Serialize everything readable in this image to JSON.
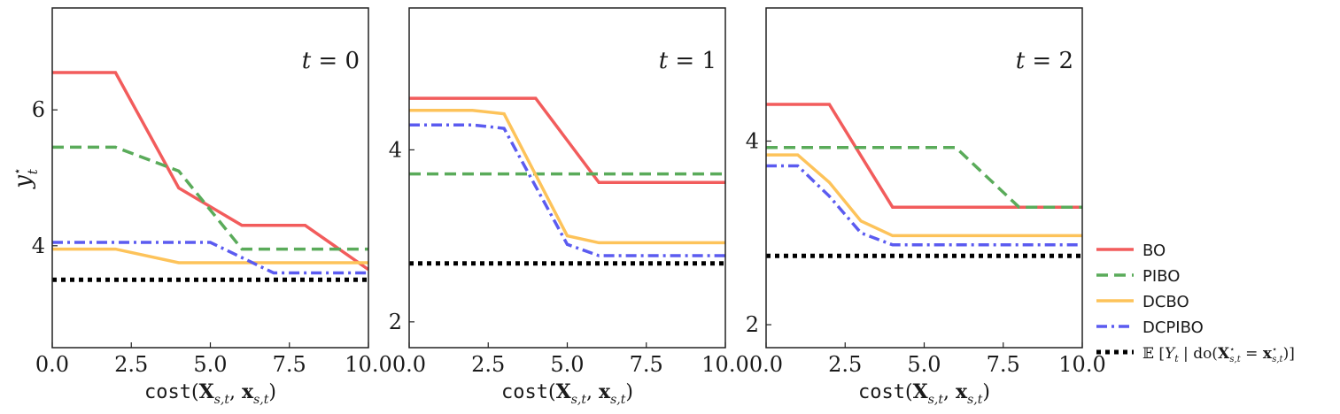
{
  "chart_data": [
    {
      "type": "line",
      "panel_label": "t = 0",
      "xlabel": "cost(X_{s,t}, x_{s,t})",
      "ylabel": "y*_t",
      "xlim": [
        0,
        10
      ],
      "ylim": [
        2.5,
        7.5
      ],
      "xticks": [
        0,
        2.5,
        5,
        7.5,
        10
      ],
      "xtick_labels": [
        "0.0",
        "2.5",
        "5.0",
        "7.5",
        "10.0"
      ],
      "yticks": [
        4,
        6
      ],
      "ytick_labels": [
        "4",
        "6"
      ],
      "series": [
        {
          "name": "BO",
          "color": "#f25c5c",
          "style": "solid",
          "x": [
            0,
            2,
            4,
            6,
            8,
            10
          ],
          "y": [
            6.55,
            6.55,
            4.85,
            4.3,
            4.3,
            3.65
          ]
        },
        {
          "name": "PIBO",
          "color": "#5aab5a",
          "style": "dashed",
          "x": [
            0,
            2,
            4,
            6,
            8,
            10
          ],
          "y": [
            5.45,
            5.45,
            5.1,
            3.95,
            3.95,
            3.95
          ]
        },
        {
          "name": "DCBO",
          "color": "#fdc35a",
          "style": "solid",
          "x": [
            0,
            2,
            4,
            6,
            8,
            10
          ],
          "y": [
            3.95,
            3.95,
            3.75,
            3.75,
            3.75,
            3.75
          ]
        },
        {
          "name": "DCPIBO",
          "color": "#5b5bf0",
          "style": "dashdot",
          "x": [
            0,
            2,
            4,
            5,
            7,
            8,
            10
          ],
          "y": [
            4.05,
            4.05,
            4.05,
            4.05,
            3.6,
            3.6,
            3.6
          ]
        },
        {
          "name": "E[Y_t | do(X*_{s,t} = x*_{s,t})]",
          "color": "#000000",
          "style": "dotted",
          "x": [
            0,
            10
          ],
          "y": [
            3.5,
            3.5
          ]
        }
      ]
    },
    {
      "type": "line",
      "panel_label": "t = 1",
      "xlabel": "cost(X_{s,t}, x_{s,t})",
      "ylabel": "",
      "xlim": [
        0,
        10
      ],
      "ylim": [
        1.7,
        5.65
      ],
      "xticks": [
        0,
        2.5,
        5,
        7.5,
        10
      ],
      "xtick_labels": [
        "0.0",
        "2.5",
        "5.0",
        "7.5",
        "10.0"
      ],
      "yticks": [
        2,
        4
      ],
      "ytick_labels": [
        "2",
        "4"
      ],
      "series": [
        {
          "name": "BO",
          "color": "#f25c5c",
          "style": "solid",
          "x": [
            0,
            4,
            6,
            10
          ],
          "y": [
            4.6,
            4.6,
            3.62,
            3.62
          ]
        },
        {
          "name": "PIBO",
          "color": "#5aab5a",
          "style": "dashed",
          "x": [
            0,
            10
          ],
          "y": [
            3.72,
            3.72
          ]
        },
        {
          "name": "DCBO",
          "color": "#fdc35a",
          "style": "solid",
          "x": [
            0,
            2,
            3,
            5,
            6,
            10
          ],
          "y": [
            4.46,
            4.46,
            4.42,
            3.0,
            2.92,
            2.92
          ]
        },
        {
          "name": "DCPIBO",
          "color": "#5b5bf0",
          "style": "dashdot",
          "x": [
            0,
            2,
            3,
            5,
            6,
            10
          ],
          "y": [
            4.29,
            4.29,
            4.25,
            2.9,
            2.77,
            2.77
          ]
        },
        {
          "name": "E[Y_t | do(X*_{s,t} = x*_{s,t})]",
          "color": "#000000",
          "style": "dotted",
          "x": [
            0,
            10
          ],
          "y": [
            2.68,
            2.68
          ]
        }
      ]
    },
    {
      "type": "line",
      "panel_label": "t = 2",
      "xlabel": "cost(X_{s,t}, x_{s,t})",
      "ylabel": "",
      "xlim": [
        0,
        10
      ],
      "ylim": [
        1.75,
        5.45
      ],
      "xticks": [
        0,
        2.5,
        5,
        7.5,
        10
      ],
      "xtick_labels": [
        "0.0",
        "2.5",
        "5.0",
        "7.5",
        "10.0"
      ],
      "yticks": [
        2,
        4
      ],
      "ytick_labels": [
        "2",
        "4"
      ],
      "series": [
        {
          "name": "BO",
          "color": "#f25c5c",
          "style": "solid",
          "x": [
            0,
            2,
            4,
            10
          ],
          "y": [
            4.4,
            4.4,
            3.28,
            3.28
          ]
        },
        {
          "name": "PIBO",
          "color": "#5aab5a",
          "style": "dashed",
          "x": [
            0,
            6,
            8,
            10
          ],
          "y": [
            3.93,
            3.93,
            3.28,
            3.28
          ]
        },
        {
          "name": "DCBO",
          "color": "#fdc35a",
          "style": "solid",
          "x": [
            0,
            1,
            2,
            3,
            4,
            10
          ],
          "y": [
            3.85,
            3.85,
            3.55,
            3.13,
            2.97,
            2.97
          ]
        },
        {
          "name": "DCPIBO",
          "color": "#5b5bf0",
          "style": "dashdot",
          "x": [
            0,
            1,
            2,
            3,
            4,
            10
          ],
          "y": [
            3.73,
            3.73,
            3.4,
            3.0,
            2.87,
            2.87
          ]
        },
        {
          "name": "E[Y_t | do(X*_{s,t} = x*_{s,t})]",
          "color": "#000000",
          "style": "dotted",
          "x": [
            0,
            10
          ],
          "y": [
            2.75,
            2.75
          ]
        }
      ]
    }
  ],
  "legend": {
    "placement": "right-bottom, outside plots",
    "entries": [
      {
        "label": "BO",
        "color": "#f25c5c",
        "style": "solid"
      },
      {
        "label": "PIBO",
        "color": "#5aab5a",
        "style": "dashed"
      },
      {
        "label": "DCBO",
        "color": "#fdc35a",
        "style": "solid"
      },
      {
        "label": "DCPIBO",
        "color": "#5b5bf0",
        "style": "dashdot"
      },
      {
        "label": "E[Y_t | do(X*_{s,t} = x*_{s,t})]",
        "color": "#000000",
        "style": "dotted"
      }
    ]
  }
}
